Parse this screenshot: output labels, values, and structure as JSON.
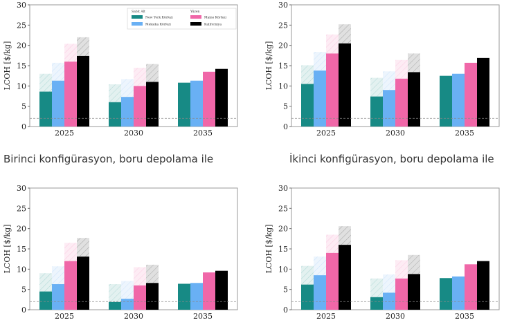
{
  "captions": [
    "Birinci konfigürasyon, boru depolama ile",
    "İkinci konfigürasyon, boru depolama ile"
  ],
  "colors": {
    "New York Körfezi": "#178a85",
    "Meksika Körfezi": "#69b0f4",
    "Maine Körfezi": "#f067a8",
    "Kaliforniya": "#000000"
  },
  "chart_data": [
    {
      "type": "bar",
      "ylabel": "LCOH [$/kg]",
      "ylim": [
        0,
        30
      ],
      "yticks": [
        0,
        5,
        10,
        15,
        20,
        25,
        30
      ],
      "categories": [
        "2025",
        "2030",
        "2035"
      ],
      "reference_line": 2,
      "legend": {
        "placement": "top-right",
        "groups": [
          {
            "title": "Sabit Alt",
            "entries": [
              "New York Körfezi",
              "Meksika Körfezi"
            ]
          },
          {
            "title": "Yüzen",
            "entries": [
              "Maine Körfezi",
              "Kaliforniya"
            ]
          }
        ]
      },
      "series": [
        {
          "name": "New York Körfezi",
          "values": [
            8.6,
            6.0,
            10.8
          ],
          "upper": [
            13.0,
            10.4,
            null
          ]
        },
        {
          "name": "Meksika Körfezi",
          "values": [
            11.3,
            7.3,
            11.3
          ],
          "upper": [
            15.7,
            11.7,
            null
          ]
        },
        {
          "name": "Maine Körfezi",
          "values": [
            16.0,
            10.0,
            13.5
          ],
          "upper": [
            20.4,
            14.5,
            null
          ]
        },
        {
          "name": "Kaliforniya",
          "values": [
            17.4,
            11.0,
            14.2
          ],
          "upper": [
            22.0,
            15.4,
            null
          ]
        }
      ]
    },
    {
      "type": "bar",
      "ylabel": "LCOH [$/kg]",
      "ylim": [
        0,
        30
      ],
      "yticks": [
        0,
        5,
        10,
        15,
        20,
        25,
        30
      ],
      "categories": [
        "2025",
        "2030",
        "2035"
      ],
      "reference_line": 2,
      "series": [
        {
          "name": "New York Körfezi",
          "values": [
            10.5,
            7.4,
            12.5
          ],
          "upper": [
            15.1,
            12.0,
            null
          ]
        },
        {
          "name": "Meksika Körfezi",
          "values": [
            13.8,
            9.0,
            13.0
          ],
          "upper": [
            18.4,
            13.6,
            null
          ]
        },
        {
          "name": "Maine Körfezi",
          "values": [
            18.0,
            11.8,
            15.7
          ],
          "upper": [
            22.7,
            16.4,
            null
          ]
        },
        {
          "name": "Kaliforniya",
          "values": [
            20.5,
            13.4,
            16.9
          ],
          "upper": [
            25.2,
            18.0,
            null
          ]
        }
      ]
    },
    {
      "type": "bar",
      "ylabel": "LCOH [$/kg]",
      "ylim": [
        0,
        30
      ],
      "yticks": [
        0,
        5,
        10,
        15,
        20,
        25,
        30
      ],
      "categories": [
        "2025",
        "2030",
        "2035"
      ],
      "reference_line": 2,
      "series": [
        {
          "name": "New York Körfezi",
          "values": [
            4.5,
            1.9,
            6.4
          ],
          "upper": [
            9.0,
            6.3,
            null
          ]
        },
        {
          "name": "Meksika Körfezi",
          "values": [
            6.3,
            2.7,
            6.6
          ],
          "upper": [
            10.7,
            7.1,
            null
          ]
        },
        {
          "name": "Maine Körfezi",
          "values": [
            12.0,
            6.0,
            9.2
          ],
          "upper": [
            16.5,
            10.5,
            null
          ]
        },
        {
          "name": "Kaliforniya",
          "values": [
            13.1,
            6.6,
            9.6
          ],
          "upper": [
            17.7,
            11.1,
            null
          ]
        }
      ]
    },
    {
      "type": "bar",
      "ylabel": "LCOH [$/kg]",
      "ylim": [
        0,
        30
      ],
      "yticks": [
        0,
        5,
        10,
        15,
        20,
        25,
        30
      ],
      "categories": [
        "2025",
        "2030",
        "2035"
      ],
      "reference_line": 2,
      "series": [
        {
          "name": "New York Körfezi",
          "values": [
            6.2,
            3.1,
            7.8
          ],
          "upper": [
            10.8,
            7.7,
            null
          ]
        },
        {
          "name": "Meksika Körfezi",
          "values": [
            8.5,
            4.2,
            8.2
          ],
          "upper": [
            13.1,
            8.7,
            null
          ]
        },
        {
          "name": "Maine Körfezi",
          "values": [
            14.0,
            7.7,
            11.2
          ],
          "upper": [
            18.5,
            12.2,
            null
          ]
        },
        {
          "name": "Kaliforniya",
          "values": [
            16.0,
            8.8,
            12.0
          ],
          "upper": [
            20.6,
            13.5,
            null
          ]
        }
      ]
    }
  ]
}
